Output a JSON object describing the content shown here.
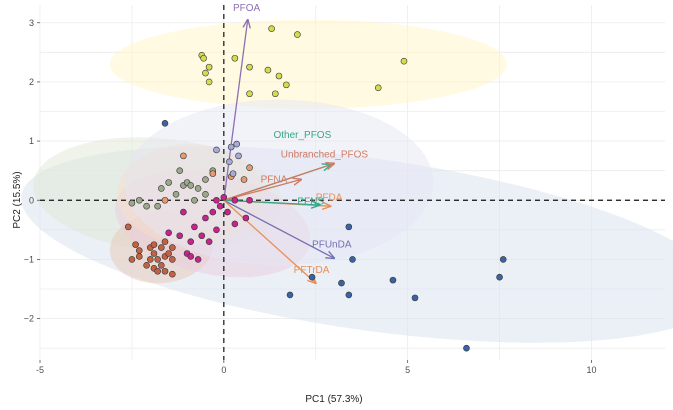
{
  "chart_data": {
    "type": "scatter",
    "title": "",
    "xlabel": "PC1 (57.3%)",
    "ylabel": "PC2 (15.5%)",
    "xlim": [
      -5,
      12
    ],
    "ylim": [
      -2.7,
      3.3
    ],
    "xticks": [
      -5,
      0,
      5,
      10
    ],
    "yticks": [
      -2,
      -1,
      0,
      1,
      2,
      3
    ],
    "grid": true,
    "reference_lines": {
      "x": 0,
      "y": 0,
      "style": "dashed"
    },
    "groups": [
      {
        "color": "#d4db4e",
        "ellipse": {
          "cx": 2.3,
          "cy": 2.3,
          "rx": 5.4,
          "ry": 0.75,
          "angle_deg": 0,
          "fill": "#fff6c4"
        },
        "points": [
          [
            -0.6,
            2.45
          ],
          [
            -0.55,
            2.4
          ],
          [
            -0.4,
            2.25
          ],
          [
            -0.5,
            2.15
          ],
          [
            -0.4,
            2.0
          ],
          [
            0.3,
            2.4
          ],
          [
            0.7,
            2.25
          ],
          [
            1.3,
            2.9
          ],
          [
            2.0,
            2.8
          ],
          [
            1.2,
            2.2
          ],
          [
            1.5,
            2.1
          ],
          [
            1.7,
            1.95
          ],
          [
            0.7,
            1.8
          ],
          [
            1.4,
            1.8
          ],
          [
            4.2,
            1.9
          ],
          [
            4.9,
            2.35
          ]
        ]
      },
      {
        "color": "#3b63a3",
        "ellipse": {
          "cx": 4.0,
          "cy": -0.75,
          "rx": 9.6,
          "ry": 1.45,
          "angle_deg": -8,
          "fill": "#d8e2f0"
        },
        "points": [
          [
            -1.6,
            1.3
          ],
          [
            2.4,
            -1.3
          ],
          [
            3.4,
            -0.45
          ],
          [
            3.5,
            -1.0
          ],
          [
            3.2,
            -1.4
          ],
          [
            3.4,
            -1.6
          ],
          [
            1.8,
            -1.6
          ],
          [
            4.6,
            -1.35
          ],
          [
            5.2,
            -1.65
          ],
          [
            6.6,
            -2.5
          ],
          [
            7.5,
            -1.3
          ],
          [
            7.6,
            -1.0
          ]
        ]
      },
      {
        "color": "#9ca88a",
        "ellipse": {
          "cx": -1.8,
          "cy": 0.1,
          "rx": 3.4,
          "ry": 0.95,
          "angle_deg": -5,
          "fill": "#dfe7d4"
        },
        "points": [
          [
            -2.3,
            0.0
          ],
          [
            -2.1,
            -0.1
          ],
          [
            -1.7,
            0.2
          ],
          [
            -1.5,
            0.3
          ],
          [
            -1.1,
            0.25
          ],
          [
            -1.0,
            0.3
          ],
          [
            -0.9,
            0.25
          ],
          [
            -0.7,
            0.2
          ],
          [
            -0.5,
            0.35
          ],
          [
            -1.3,
            0.1
          ],
          [
            -0.8,
            0.0
          ],
          [
            -0.5,
            0.1
          ],
          [
            -1.2,
            0.5
          ],
          [
            -0.3,
            0.5
          ],
          [
            -1.8,
            -0.1
          ],
          [
            -2.5,
            -0.05
          ]
        ]
      },
      {
        "color": "#c36242",
        "ellipse": {
          "cx": -1.7,
          "cy": -0.8,
          "rx": 1.4,
          "ry": 0.6,
          "angle_deg": 5,
          "fill": "#e7c8b7"
        },
        "points": [
          [
            -2.4,
            -0.75
          ],
          [
            -2.3,
            -0.85
          ],
          [
            -2.3,
            -0.95
          ],
          [
            -2.0,
            -0.8
          ],
          [
            -1.9,
            -0.9
          ],
          [
            -1.7,
            -0.8
          ],
          [
            -1.6,
            -0.95
          ],
          [
            -1.5,
            -0.9
          ],
          [
            -1.4,
            -1.0
          ],
          [
            -1.8,
            -1.0
          ],
          [
            -1.9,
            -1.15
          ],
          [
            -1.8,
            -1.2
          ],
          [
            -1.7,
            -1.1
          ],
          [
            -1.6,
            -1.2
          ],
          [
            -1.9,
            -0.75
          ],
          [
            -1.6,
            -0.7
          ],
          [
            -1.4,
            -0.8
          ],
          [
            -2.1,
            -1.1
          ],
          [
            -2.0,
            -1.0
          ],
          [
            -2.6,
            -0.45
          ],
          [
            -1.4,
            -1.25
          ],
          [
            -2.5,
            -1.0
          ]
        ]
      },
      {
        "color": "#c4248c",
        "ellipse": {
          "cx": -0.3,
          "cy": -0.4,
          "rx": 2.7,
          "ry": 0.85,
          "angle_deg": -12,
          "fill": "#ebcbe0"
        },
        "points": [
          [
            -1.2,
            -0.6
          ],
          [
            -0.9,
            -0.7
          ],
          [
            -0.8,
            -0.45
          ],
          [
            -0.6,
            -0.6
          ],
          [
            -0.5,
            -0.3
          ],
          [
            -0.4,
            -0.7
          ],
          [
            -0.3,
            -0.2
          ],
          [
            -0.2,
            -0.5
          ],
          [
            -0.1,
            -0.1
          ],
          [
            0.1,
            -0.2
          ],
          [
            0.3,
            -0.4
          ],
          [
            0.6,
            -0.3
          ],
          [
            -1.0,
            -0.9
          ],
          [
            -0.9,
            -0.95
          ],
          [
            -0.7,
            -1.0
          ],
          [
            -1.5,
            -0.55
          ],
          [
            -0.2,
            0.0
          ],
          [
            0.0,
            0.05
          ],
          [
            -1.1,
            -0.2
          ],
          [
            0.7,
            0.0
          ],
          [
            0.3,
            0.0
          ]
        ]
      },
      {
        "color": "#e89a6c",
        "ellipse": {
          "cx": -0.9,
          "cy": 0.1,
          "rx": 2.0,
          "ry": 0.85,
          "angle_deg": 0,
          "fill": "#f6ddc9"
        },
        "points": [
          [
            -1.1,
            0.75
          ],
          [
            -1.6,
            0.0
          ],
          [
            0.2,
            0.4
          ],
          [
            0.7,
            0.55
          ],
          [
            0.55,
            0.35
          ],
          [
            -0.3,
            0.45
          ]
        ]
      },
      {
        "color": "#a7a9d6",
        "ellipse": {
          "cx": 1.5,
          "cy": 0.3,
          "rx": 4.2,
          "ry": 1.4,
          "angle_deg": 0,
          "fill": "#e6e6f4"
        },
        "points": [
          [
            -0.2,
            0.85
          ],
          [
            0.4,
            0.75
          ],
          [
            0.35,
            0.95
          ],
          [
            0.2,
            0.9
          ],
          [
            0.15,
            0.65
          ],
          [
            0.25,
            0.45
          ]
        ]
      }
    ],
    "loadings": [
      {
        "label": "PFOA",
        "x": 0.65,
        "y": 3.05,
        "color": "#8d6fb4",
        "label_x": 0.25,
        "label_y": 3.2
      },
      {
        "label": "Other_PFOS",
        "x": 2.9,
        "y": 0.6,
        "color": "#36a788",
        "label_x": 1.35,
        "label_y": 1.05
      },
      {
        "label": "Unbranched_PFOS",
        "x": 3.0,
        "y": 0.62,
        "color": "#cf7b62",
        "label_x": 1.55,
        "label_y": 0.72
      },
      {
        "label": "PFNA",
        "x": 2.1,
        "y": 0.35,
        "color": "#cf7b62",
        "label_x": 1.0,
        "label_y": 0.3
      },
      {
        "label": "PFDA",
        "x": 2.9,
        "y": -0.1,
        "color": "#ea8e54",
        "label_x": 2.5,
        "label_y": 0.0
      },
      {
        "label": "PFNS",
        "x": 2.6,
        "y": -0.08,
        "color": "#36a788",
        "label_x": 2.0,
        "label_y": -0.07
      },
      {
        "label": "PFUnDA",
        "x": 3.0,
        "y": -0.98,
        "color": "#7570b3",
        "label_x": 2.4,
        "label_y": -0.8
      },
      {
        "label": "PFTrDA",
        "x": 2.5,
        "y": -1.4,
        "color": "#ea8e54",
        "label_x": 1.9,
        "label_y": -1.23
      }
    ]
  }
}
